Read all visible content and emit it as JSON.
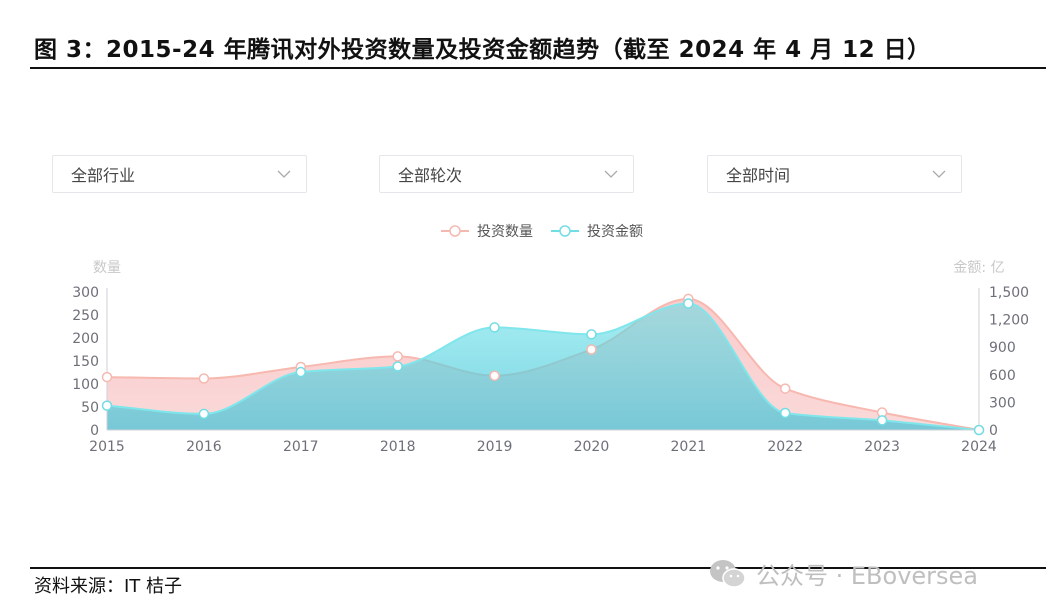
{
  "figure": {
    "title": "图 3：2015-24 年腾讯对外投资数量及投资金额趋势（截至 2024 年 4 月 12 日）",
    "source": "资料来源：IT 桔子",
    "watermark": "公众号 · EBoversea"
  },
  "filters": [
    {
      "label": "全部行业"
    },
    {
      "label": "全部轮次"
    },
    {
      "label": "全部时间"
    }
  ],
  "chart_data": {
    "type": "area",
    "x": [
      "2015",
      "2016",
      "2017",
      "2018",
      "2019",
      "2020",
      "2021",
      "2022",
      "2023",
      "2024"
    ],
    "series": [
      {
        "name": "投资数量",
        "axis": "left",
        "color": "#f4a7a7",
        "values": [
          115,
          112,
          137,
          160,
          118,
          175,
          285,
          90,
          38,
          0
        ]
      },
      {
        "name": "投资金额",
        "axis": "right",
        "color": "#63d6df",
        "values": [
          265,
          175,
          630,
          690,
          1115,
          1040,
          1375,
          185,
          105,
          0
        ]
      }
    ],
    "y_left": {
      "name": "数量",
      "min": 0,
      "max": 300,
      "ticks": [
        "300",
        "250",
        "200",
        "150",
        "100",
        "50",
        "0"
      ]
    },
    "y_right": {
      "name": "金额: 亿",
      "min": 0,
      "max": 1500,
      "ticks": [
        "1,500",
        "1,200",
        "900",
        "600",
        "300",
        "0"
      ]
    },
    "legend": "top-center",
    "grid": false
  }
}
